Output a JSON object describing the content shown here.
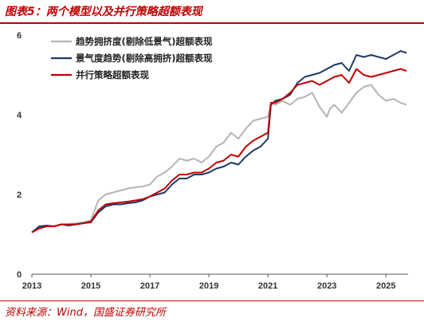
{
  "figure": {
    "title": "图表5：两个模型以及并行策略超额表现",
    "source": "资料来源：Wind，国盛证券研究所"
  },
  "chart_data": {
    "type": "line",
    "title": "图表5：两个模型以及并行策略超额表现",
    "xlabel": "",
    "ylabel": "",
    "xlim": [
      2013.0,
      2025.75
    ],
    "ylim": [
      0,
      6
    ],
    "xticks": [
      "2013",
      "2015",
      "2017",
      "2019",
      "2021",
      "2023",
      "2025"
    ],
    "yticks": [
      "0",
      "2",
      "4",
      "6"
    ],
    "grid": false,
    "legend_position": "top-left",
    "series": [
      {
        "name": "趋势拥挤度(剔除低景气)超额表现",
        "color": "#b4b4b4",
        "x": [
          2013.0,
          2013.25,
          2013.5,
          2013.75,
          2014.0,
          2014.25,
          2014.5,
          2014.75,
          2015.0,
          2015.25,
          2015.5,
          2015.75,
          2016.0,
          2016.25,
          2016.5,
          2016.75,
          2017.0,
          2017.25,
          2017.5,
          2017.75,
          2018.0,
          2018.25,
          2018.5,
          2018.75,
          2019.0,
          2019.25,
          2019.5,
          2019.75,
          2020.0,
          2020.25,
          2020.5,
          2020.75,
          2021.0,
          2021.1,
          2021.25,
          2021.5,
          2021.75,
          2022.0,
          2022.25,
          2022.5,
          2022.75,
          2023.0,
          2023.1,
          2023.25,
          2023.5,
          2023.75,
          2024.0,
          2024.25,
          2024.5,
          2024.75,
          2025.0,
          2025.25,
          2025.5,
          2025.7
        ],
        "y": [
          1.05,
          1.15,
          1.2,
          1.2,
          1.25,
          1.25,
          1.28,
          1.3,
          1.35,
          1.85,
          2.0,
          2.05,
          2.1,
          2.15,
          2.18,
          2.2,
          2.25,
          2.45,
          2.55,
          2.7,
          2.9,
          2.85,
          2.9,
          2.8,
          2.95,
          3.2,
          3.3,
          3.55,
          3.4,
          3.65,
          3.85,
          3.9,
          3.95,
          4.3,
          4.25,
          4.35,
          4.25,
          4.4,
          4.45,
          4.55,
          4.2,
          3.95,
          4.15,
          4.25,
          4.05,
          4.3,
          4.55,
          4.7,
          4.75,
          4.5,
          4.35,
          4.4,
          4.3,
          4.25
        ]
      },
      {
        "name": "景气度趋势(剔除高拥挤)超额表现",
        "color": "#1f3864",
        "x": [
          2013.0,
          2013.25,
          2013.5,
          2013.75,
          2014.0,
          2014.25,
          2014.5,
          2014.75,
          2015.0,
          2015.25,
          2015.5,
          2015.75,
          2016.0,
          2016.25,
          2016.5,
          2016.75,
          2017.0,
          2017.25,
          2017.5,
          2017.75,
          2018.0,
          2018.25,
          2018.5,
          2018.75,
          2019.0,
          2019.25,
          2019.5,
          2019.75,
          2020.0,
          2020.25,
          2020.5,
          2020.75,
          2021.0,
          2021.1,
          2021.25,
          2021.5,
          2021.75,
          2022.0,
          2022.25,
          2022.5,
          2022.75,
          2023.0,
          2023.25,
          2023.5,
          2023.75,
          2024.0,
          2024.25,
          2024.5,
          2024.75,
          2025.0,
          2025.25,
          2025.5,
          2025.7
        ],
        "y": [
          1.05,
          1.2,
          1.22,
          1.2,
          1.25,
          1.22,
          1.25,
          1.28,
          1.3,
          1.55,
          1.7,
          1.75,
          1.75,
          1.78,
          1.8,
          1.85,
          1.95,
          2.0,
          2.05,
          2.25,
          2.4,
          2.4,
          2.5,
          2.5,
          2.55,
          2.65,
          2.7,
          2.8,
          2.75,
          2.95,
          3.1,
          3.2,
          3.4,
          4.25,
          4.35,
          4.4,
          4.5,
          4.8,
          4.95,
          5.0,
          5.05,
          5.15,
          5.25,
          5.3,
          5.1,
          5.5,
          5.45,
          5.5,
          5.45,
          5.4,
          5.5,
          5.6,
          5.55
        ]
      },
      {
        "name": "并行策略超额表现",
        "color": "#c00000",
        "x": [
          2013.0,
          2013.25,
          2013.5,
          2013.75,
          2014.0,
          2014.25,
          2014.5,
          2014.75,
          2015.0,
          2015.25,
          2015.5,
          2015.75,
          2016.0,
          2016.25,
          2016.5,
          2016.75,
          2017.0,
          2017.25,
          2017.5,
          2017.75,
          2018.0,
          2018.25,
          2018.5,
          2018.75,
          2019.0,
          2019.25,
          2019.5,
          2019.75,
          2020.0,
          2020.25,
          2020.5,
          2020.75,
          2021.0,
          2021.1,
          2021.25,
          2021.5,
          2021.75,
          2022.0,
          2022.25,
          2022.5,
          2022.75,
          2023.0,
          2023.25,
          2023.5,
          2023.75,
          2024.0,
          2024.25,
          2024.5,
          2024.75,
          2025.0,
          2025.25,
          2025.5,
          2025.7
        ],
        "y": [
          1.05,
          1.15,
          1.2,
          1.2,
          1.25,
          1.25,
          1.25,
          1.28,
          1.32,
          1.6,
          1.75,
          1.78,
          1.8,
          1.82,
          1.85,
          1.88,
          1.95,
          2.05,
          2.15,
          2.35,
          2.5,
          2.5,
          2.55,
          2.55,
          2.65,
          2.8,
          2.85,
          3.0,
          2.95,
          3.2,
          3.35,
          3.45,
          3.55,
          4.3,
          4.3,
          4.4,
          4.55,
          4.75,
          4.8,
          4.85,
          4.75,
          4.85,
          4.95,
          5.0,
          4.8,
          5.15,
          5.0,
          4.95,
          5.0,
          5.05,
          5.1,
          5.15,
          5.1
        ]
      }
    ]
  }
}
